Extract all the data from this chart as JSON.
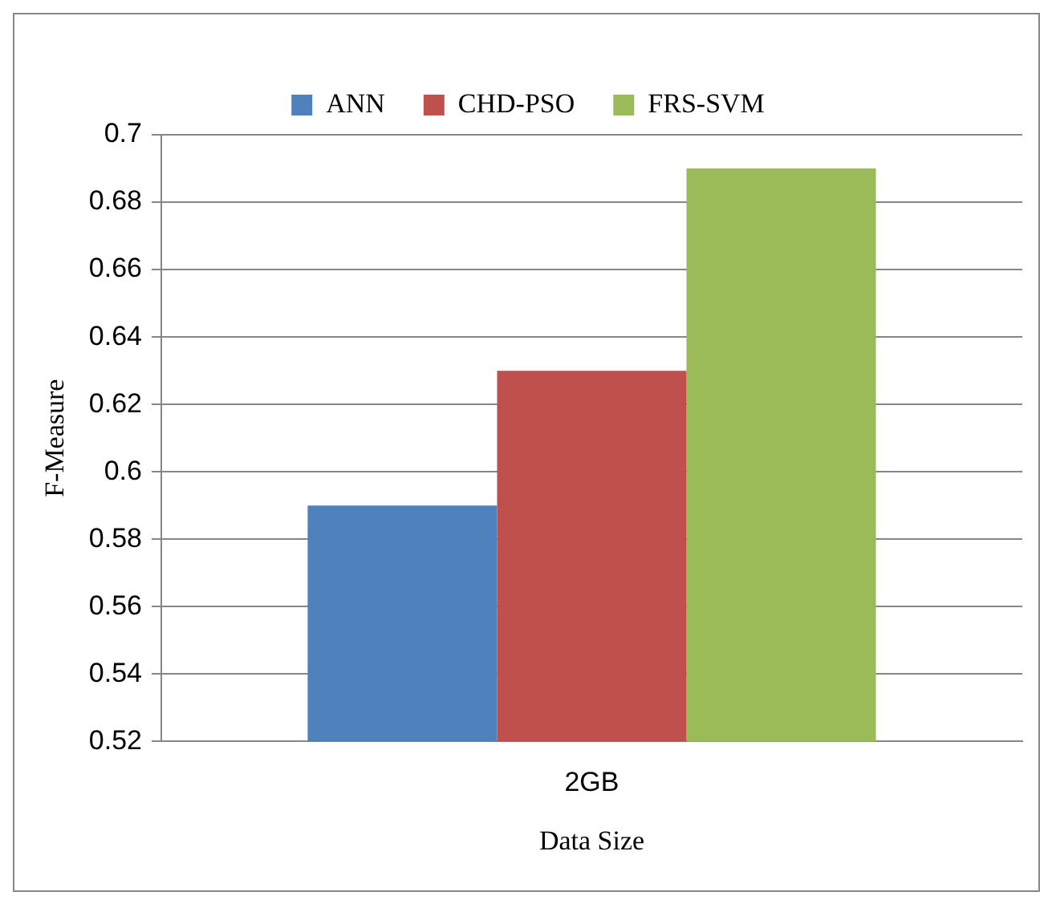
{
  "chart_data": {
    "type": "bar",
    "xlabel": "Data Size",
    "ylabel": "F-Measure",
    "categories": [
      "2GB"
    ],
    "series": [
      {
        "name": "ANN",
        "color": "#4f81bd",
        "values": [
          0.59
        ]
      },
      {
        "name": "CHD-PSO",
        "color": "#c0504d",
        "values": [
          0.63
        ]
      },
      {
        "name": "FRS-SVM",
        "color": "#9bbb59",
        "values": [
          0.69
        ]
      }
    ],
    "ylim": [
      0.52,
      0.7
    ],
    "yticks": [
      0.52,
      0.54,
      0.56,
      0.58,
      0.6,
      0.62,
      0.64,
      0.66,
      0.68,
      0.7
    ],
    "grid": "y",
    "legend": "top"
  }
}
